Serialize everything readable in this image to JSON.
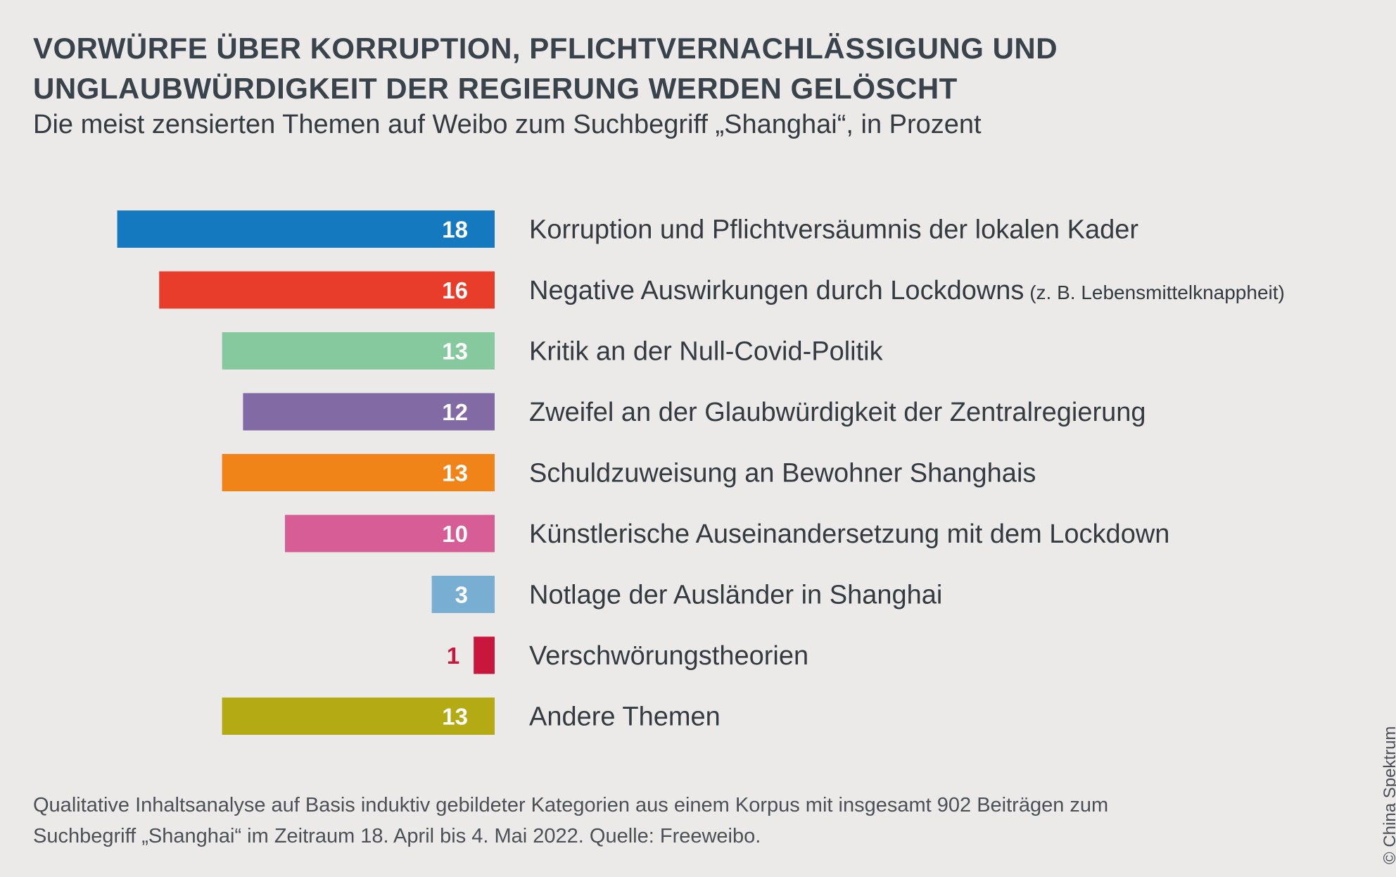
{
  "title_lines": [
    "VORWÜRFE ÜBER KORRUPTION, PFLICHTVERNACHLÄSSIGUNG UND",
    "UNGLAUBWÜRDIGKEIT DER REGIERUNG WERDEN GELÖSCHT"
  ],
  "subtitle": "Die meist zensierten Themen auf Weibo zum Suchbegriff „Shanghai“, in Prozent",
  "chart_data": {
    "type": "bar",
    "orientation": "horizontal",
    "unit": "Prozent",
    "title": "VORWÜRFE ÜBER KORRUPTION, PFLICHTVERNACHLÄSSIGUNG UND UNGLAUBWÜRDIGKEIT DER REGIERUNG WERDEN GELÖSCHT",
    "subtitle": "Die meist zensierten Themen auf Weibo zum Suchbegriff „Shanghai“, in Prozent",
    "categories": [
      "Korruption und Pflichtversäumnis der lokalen Kader",
      "Negative Auswirkungen durch Lockdowns",
      "Kritik an der Null-Covid-Politik",
      "Zweifel an der Glaubwürdigkeit der Zentralregierung",
      "Schuldzuweisung an Bewohner Shanghais",
      "Künstlerische Auseinandersetzung mit dem Lockdown",
      "Notlage der Ausländer in Shanghai",
      "Verschwörungstheorien",
      "Andere Themen"
    ],
    "notes": [
      "",
      "(z. B. Lebensmittelknappheit)",
      "",
      "",
      "",
      "",
      "",
      "",
      ""
    ],
    "values": [
      18,
      16,
      13,
      12,
      13,
      10,
      3,
      1,
      13
    ],
    "colors": [
      "#1479be",
      "#e83d2b",
      "#87c99e",
      "#826aa4",
      "#f18418",
      "#d75d96",
      "#79aed3",
      "#c8163d",
      "#b3aa14"
    ],
    "value_label_colors": [
      "#ffffff",
      "#ffffff",
      "#ffffff",
      "#ffffff",
      "#ffffff",
      "#ffffff",
      "#ffffff",
      "#c8163d",
      "#ffffff"
    ],
    "xlim": [
      0,
      18
    ]
  },
  "footnote_lines": [
    "Qualitative Inhaltsanalyse auf Basis induktiv gebildeter Kategorien aus einem Korpus mit insgesamt 902 Beiträgen zum",
    "Suchbegriff „Shanghai“ im Zeitraum 18. April bis 4. Mai 2022. Quelle: Freeweibo."
  ],
  "copyright": "© China Spektrum"
}
